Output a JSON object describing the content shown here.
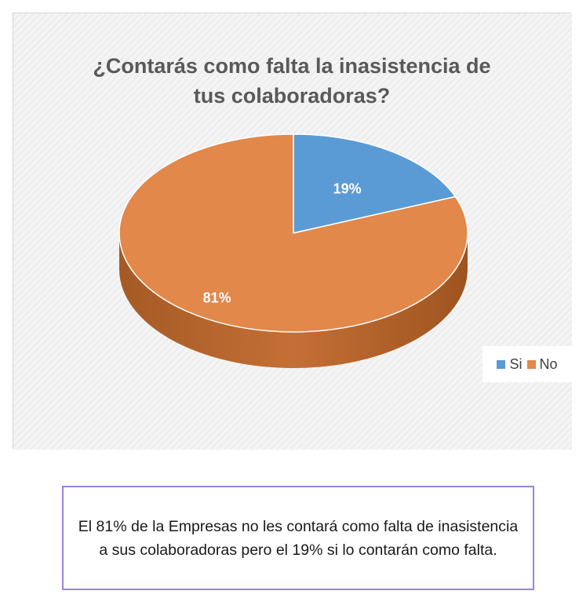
{
  "colors": {
    "si": "#5b9bd5",
    "no": "#e2884a",
    "no_side": "#b5632a",
    "si_side": "#4a80b3"
  },
  "chart_data": {
    "type": "pie",
    "title_lines": [
      "¿Contarás como falta la inasistencia de",
      "tus colaboradoras?"
    ],
    "slices": [
      {
        "name": "Si",
        "value": 19,
        "label": "19%"
      },
      {
        "name": "No",
        "value": 81,
        "label": "81%"
      }
    ],
    "legend": [
      "Si",
      "No"
    ],
    "legend_position": "right",
    "style": "3d"
  },
  "caption": "El 81% de la Empresas no les contará como falta de inasistencia a sus colaboradoras pero el 19% si lo contarán como falta."
}
